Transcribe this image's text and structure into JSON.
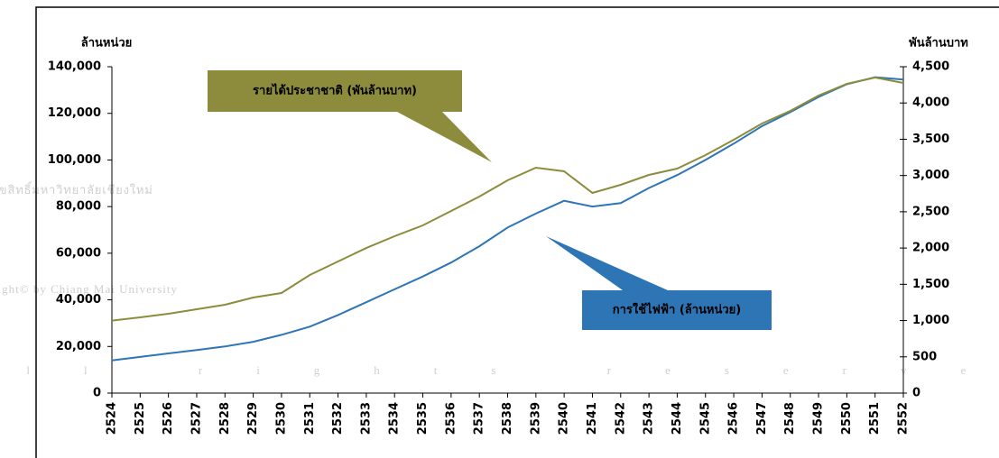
{
  "chart_data": {
    "type": "line",
    "y_label": "ล้านหน่วย",
    "y2_label": "พันล้านบาท",
    "categories": [
      "2524",
      "2525",
      "2526",
      "2527",
      "2528",
      "2529",
      "2530",
      "2531",
      "2532",
      "2533",
      "2534",
      "2535",
      "2536",
      "2537",
      "2538",
      "2539",
      "2540",
      "2541",
      "2542",
      "2543",
      "2544",
      "2545",
      "2546",
      "2547",
      "2548",
      "2549",
      "2550",
      "2551",
      "2552"
    ],
    "series": [
      {
        "name": "การใช้ไฟฟ้า (ล้านหน่วย)",
        "color": "#2e75b6",
        "axis": "y",
        "values": [
          14000,
          15500,
          17000,
          18500,
          20000,
          22000,
          25000,
          28500,
          33500,
          39000,
          44500,
          50000,
          56000,
          63000,
          71000,
          77000,
          82500,
          80000,
          81500,
          88000,
          93500,
          100000,
          107000,
          114500,
          120500,
          127000,
          132500,
          135500,
          134500
        ]
      },
      {
        "name": "รายได้ประชาชาติ (พันล้านบาท)",
        "color": "#8c8c3c",
        "axis": "y2",
        "values": [
          1000,
          1044,
          1094,
          1156,
          1218,
          1318,
          1380,
          1628,
          1815,
          2000,
          2163,
          2312,
          2511,
          2710,
          2934,
          3108,
          3058,
          2760,
          2872,
          3008,
          3095,
          3282,
          3493,
          3717,
          3891,
          4102,
          4264,
          4351,
          4276
        ]
      }
    ],
    "ylim": [
      0,
      140000
    ],
    "yticks": [
      0,
      {
        "value": 20000,
        "label": "20,000"
      },
      {
        "value": 40000,
        "label": "40,000"
      },
      {
        "value": 60000,
        "label": "60,000"
      },
      {
        "value": 80000,
        "label": "80,000"
      },
      {
        "value": 100000,
        "label": "100,000"
      },
      {
        "value": 120000,
        "label": "120,000"
      },
      {
        "value": 140000,
        "label": "140,000"
      }
    ],
    "y2lim": [
      0,
      4500
    ],
    "y2ticks": [
      0,
      500,
      {
        "value": 1000,
        "label": "1,000"
      },
      {
        "value": 1500,
        "label": "1,500"
      },
      {
        "value": 2000,
        "label": "2,000"
      },
      {
        "value": 2500,
        "label": "2,500"
      },
      {
        "value": 3000,
        "label": "3,000"
      },
      {
        "value": 3500,
        "label": "3,500"
      },
      {
        "value": 4000,
        "label": "4,000"
      },
      {
        "value": 4500,
        "label": "4,500"
      }
    ],
    "watermark": [
      "ลิขสิทธิ์มหาวิทยาลัยเชียงใหม่",
      "Copyright© by Chiang Mai University",
      "All rights reserved"
    ]
  }
}
